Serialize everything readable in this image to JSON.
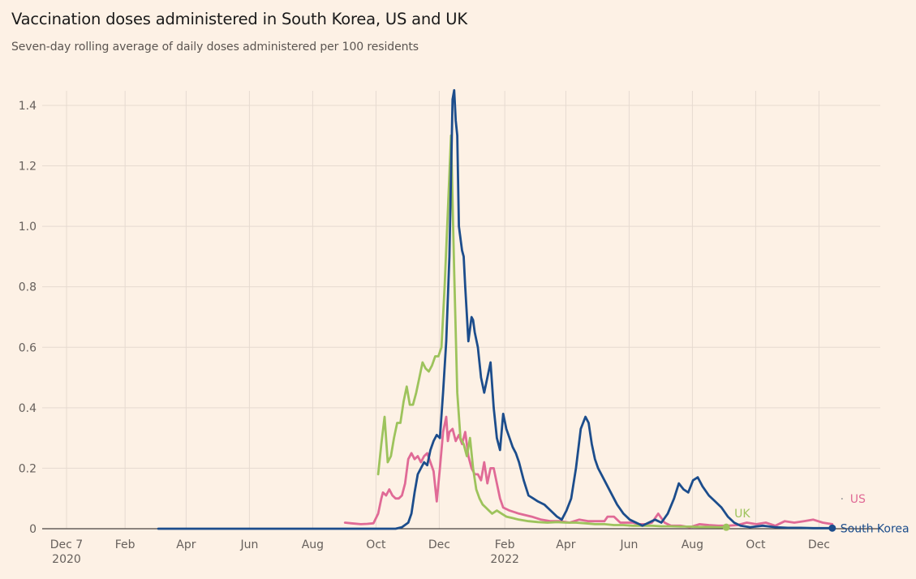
{
  "title": "Vaccination doses administered in South Korea, US and UK",
  "subtitle": "Seven-day rolling average of daily doses administered per 100 residents",
  "chart_data": {
    "type": "line",
    "title": "Vaccination doses administered in South Korea, US and UK",
    "subtitle": "Seven-day rolling average of daily doses administered per 100 residents",
    "xlabel": "",
    "ylabel": "",
    "x_unit": "months since Dec 7 2020",
    "xlim": [
      0,
      24.6
    ],
    "ylim": [
      0,
      1.45
    ],
    "grid": true,
    "y_ticks": [
      {
        "value": 0,
        "label": "0"
      },
      {
        "value": 0.2,
        "label": "0.2"
      },
      {
        "value": 0.4,
        "label": "0.4"
      },
      {
        "value": 0.6,
        "label": "0.6"
      },
      {
        "value": 0.8,
        "label": "0.8"
      },
      {
        "value": 1.0,
        "label": "1.0"
      },
      {
        "value": 1.2,
        "label": "1.2"
      },
      {
        "value": 1.4,
        "label": "1.4"
      }
    ],
    "x_ticks": [
      {
        "value": 0,
        "label": "Dec 7",
        "sublabel": "2020"
      },
      {
        "value": 1.85,
        "label": "Feb",
        "sublabel": ""
      },
      {
        "value": 3.78,
        "label": "Apr",
        "sublabel": ""
      },
      {
        "value": 5.78,
        "label": "Jun",
        "sublabel": ""
      },
      {
        "value": 7.78,
        "label": "Aug",
        "sublabel": ""
      },
      {
        "value": 9.78,
        "label": "Oct",
        "sublabel": ""
      },
      {
        "value": 11.78,
        "label": "Dec",
        "sublabel": ""
      },
      {
        "value": 13.85,
        "label": "Feb",
        "sublabel": "2022"
      },
      {
        "value": 15.78,
        "label": "Apr",
        "sublabel": ""
      },
      {
        "value": 17.78,
        "label": "Jun",
        "sublabel": ""
      },
      {
        "value": 19.78,
        "label": "Aug",
        "sublabel": ""
      },
      {
        "value": 21.78,
        "label": "Oct",
        "sublabel": ""
      },
      {
        "value": 23.78,
        "label": "Dec",
        "sublabel": ""
      }
    ],
    "series": [
      {
        "name": "US",
        "label": "US",
        "color": "#e06a96",
        "x": [
          8.8,
          9.0,
          9.3,
          9.5,
          9.7,
          9.85,
          9.95,
          10.0,
          10.1,
          10.2,
          10.3,
          10.4,
          10.5,
          10.6,
          10.7,
          10.8,
          10.9,
          11.0,
          11.1,
          11.2,
          11.3,
          11.4,
          11.5,
          11.6,
          11.7,
          11.8,
          11.9,
          12.0,
          12.05,
          12.1,
          12.2,
          12.3,
          12.4,
          12.5,
          12.6,
          12.7,
          12.8,
          12.9,
          13.0,
          13.1,
          13.2,
          13.3,
          13.4,
          13.5,
          13.6,
          13.7,
          13.8,
          14.0,
          14.3,
          14.7,
          15.0,
          15.3,
          15.6,
          15.9,
          16.2,
          16.5,
          16.8,
          17.0,
          17.1,
          17.3,
          17.5,
          17.7,
          17.9,
          18.1,
          18.3,
          18.5,
          18.7,
          18.9,
          19.1,
          19.4,
          19.7,
          20.0,
          20.3,
          20.6,
          20.9,
          21.2,
          21.5,
          21.8,
          22.1,
          22.4,
          22.7,
          23.0,
          23.3,
          23.6,
          23.9,
          24.2
        ],
        "y": [
          0.02,
          0.018,
          0.015,
          0.016,
          0.018,
          0.05,
          0.1,
          0.12,
          0.11,
          0.13,
          0.11,
          0.1,
          0.1,
          0.11,
          0.15,
          0.23,
          0.25,
          0.23,
          0.24,
          0.22,
          0.24,
          0.25,
          0.22,
          0.19,
          0.09,
          0.2,
          0.32,
          0.37,
          0.29,
          0.32,
          0.33,
          0.29,
          0.31,
          0.28,
          0.32,
          0.24,
          0.2,
          0.18,
          0.18,
          0.16,
          0.22,
          0.15,
          0.2,
          0.2,
          0.15,
          0.1,
          0.07,
          0.06,
          0.05,
          0.04,
          0.03,
          0.025,
          0.025,
          0.02,
          0.03,
          0.025,
          0.025,
          0.025,
          0.04,
          0.04,
          0.02,
          0.02,
          0.02,
          0.015,
          0.015,
          0.02,
          0.05,
          0.02,
          0.01,
          0.01,
          0.005,
          0.015,
          0.012,
          0.01,
          0.01,
          0.012,
          0.02,
          0.015,
          0.02,
          0.01,
          0.025,
          0.02,
          0.025,
          0.03,
          0.02,
          0.015
        ]
      },
      {
        "name": "UK",
        "label": "UK",
        "color": "#9dc35c",
        "x": [
          9.85,
          9.95,
          10.05,
          10.15,
          10.25,
          10.35,
          10.45,
          10.55,
          10.65,
          10.75,
          10.85,
          10.95,
          11.05,
          11.15,
          11.25,
          11.35,
          11.45,
          11.55,
          11.65,
          11.75,
          11.85,
          11.95,
          12.05,
          12.15,
          12.25,
          12.35,
          12.45,
          12.55,
          12.65,
          12.75,
          12.85,
          12.95,
          13.05,
          13.15,
          13.25,
          13.35,
          13.45,
          13.6,
          13.75,
          13.9,
          14.1,
          14.3,
          14.6,
          14.9,
          15.2,
          15.5,
          15.8,
          16.1,
          16.4,
          16.7,
          17.0,
          17.3,
          17.6,
          17.9,
          18.2,
          18.5,
          18.8,
          19.1,
          19.4,
          19.7,
          20.0,
          20.3,
          20.6,
          20.85
        ],
        "y": [
          0.18,
          0.28,
          0.37,
          0.22,
          0.24,
          0.3,
          0.35,
          0.35,
          0.42,
          0.47,
          0.41,
          0.41,
          0.45,
          0.5,
          0.55,
          0.53,
          0.52,
          0.54,
          0.57,
          0.57,
          0.6,
          0.8,
          1.05,
          1.3,
          0.85,
          0.45,
          0.3,
          0.28,
          0.24,
          0.3,
          0.2,
          0.13,
          0.1,
          0.08,
          0.07,
          0.06,
          0.05,
          0.06,
          0.05,
          0.04,
          0.035,
          0.03,
          0.025,
          0.022,
          0.02,
          0.022,
          0.02,
          0.02,
          0.018,
          0.015,
          0.015,
          0.012,
          0.012,
          0.01,
          0.01,
          0.01,
          0.008,
          0.008,
          0.007,
          0.007,
          0.006,
          0.006,
          0.005,
          0.005
        ]
      },
      {
        "name": "South Korea",
        "label": "South Korea",
        "color": "#1c4d8c",
        "x": [
          2.9,
          5.0,
          7.0,
          9.0,
          10.4,
          10.6,
          10.8,
          10.9,
          11.0,
          11.1,
          11.2,
          11.3,
          11.4,
          11.5,
          11.6,
          11.7,
          11.8,
          11.9,
          12.0,
          12.1,
          12.2,
          12.25,
          12.3,
          12.35,
          12.4,
          12.5,
          12.55,
          12.6,
          12.7,
          12.8,
          12.85,
          12.9,
          13.0,
          13.1,
          13.2,
          13.3,
          13.4,
          13.5,
          13.6,
          13.7,
          13.8,
          13.9,
          14.0,
          14.1,
          14.2,
          14.3,
          14.45,
          14.6,
          14.75,
          14.9,
          15.1,
          15.3,
          15.5,
          15.65,
          15.8,
          15.95,
          16.1,
          16.25,
          16.4,
          16.5,
          16.6,
          16.7,
          16.8,
          17.0,
          17.2,
          17.4,
          17.6,
          17.8,
          18.0,
          18.2,
          18.4,
          18.6,
          18.8,
          19.0,
          19.2,
          19.35,
          19.5,
          19.65,
          19.8,
          19.95,
          20.1,
          20.3,
          20.5,
          20.7,
          20.9,
          21.1,
          21.3,
          21.6,
          22.0,
          22.4,
          22.8,
          23.2,
          23.6,
          24.0,
          24.2
        ],
        "y": [
          0.0,
          0.0,
          0.0,
          0.0,
          0.0,
          0.005,
          0.02,
          0.05,
          0.12,
          0.18,
          0.2,
          0.22,
          0.21,
          0.26,
          0.29,
          0.31,
          0.3,
          0.45,
          0.62,
          0.9,
          1.42,
          1.45,
          1.35,
          1.3,
          1.0,
          0.92,
          0.9,
          0.8,
          0.62,
          0.7,
          0.69,
          0.65,
          0.6,
          0.5,
          0.45,
          0.5,
          0.55,
          0.4,
          0.3,
          0.26,
          0.38,
          0.33,
          0.3,
          0.27,
          0.25,
          0.22,
          0.16,
          0.11,
          0.1,
          0.09,
          0.08,
          0.06,
          0.04,
          0.03,
          0.06,
          0.1,
          0.2,
          0.33,
          0.37,
          0.35,
          0.28,
          0.23,
          0.2,
          0.16,
          0.12,
          0.08,
          0.05,
          0.03,
          0.02,
          0.01,
          0.02,
          0.03,
          0.02,
          0.05,
          0.1,
          0.15,
          0.13,
          0.12,
          0.16,
          0.17,
          0.14,
          0.11,
          0.09,
          0.07,
          0.04,
          0.02,
          0.01,
          0.005,
          0.01,
          0.005,
          0.003,
          0.003,
          0.002,
          0.002,
          0.002
        ]
      }
    ],
    "annotations": [
      {
        "text": "US",
        "series": "US"
      },
      {
        "text": "UK",
        "series": "UK"
      },
      {
        "text": "South Korea",
        "series": "South Korea"
      }
    ]
  }
}
